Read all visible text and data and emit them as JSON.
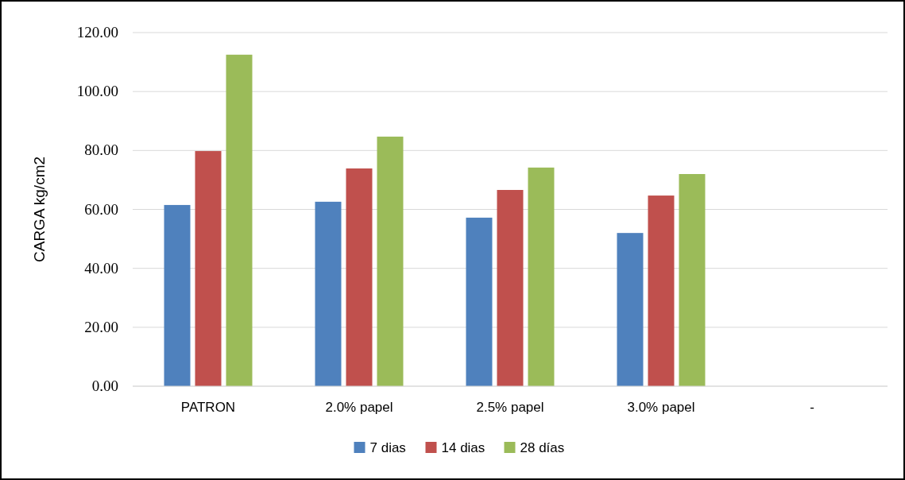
{
  "chart_data": {
    "type": "bar",
    "ylabel": "CARGA kg/cm2",
    "categories": [
      "PATRON",
      "2.0% papel",
      "2.5% papel",
      "3.0% papel",
      "-"
    ],
    "series": [
      {
        "name": "7 dias",
        "color": "#4f81bd",
        "values": [
          61.5,
          62.6,
          57.2,
          52.0,
          null
        ]
      },
      {
        "name": "14 dias",
        "color": "#c0504d",
        "values": [
          79.8,
          73.9,
          66.6,
          64.7,
          null
        ]
      },
      {
        "name": "28 días",
        "color": "#9bbb59",
        "values": [
          112.5,
          84.7,
          74.2,
          72.0,
          null
        ]
      }
    ],
    "ylim": [
      0,
      120
    ],
    "yticks": [
      {
        "value": 0,
        "label": "0.00"
      },
      {
        "value": 20,
        "label": "20.00"
      },
      {
        "value": 40,
        "label": "40.00"
      },
      {
        "value": 60,
        "label": "60.00"
      },
      {
        "value": 80,
        "label": "80.00"
      },
      {
        "value": 100,
        "label": "100.00"
      },
      {
        "value": 120,
        "label": "120.00"
      }
    ],
    "grid": "y",
    "legend": "bottom"
  }
}
